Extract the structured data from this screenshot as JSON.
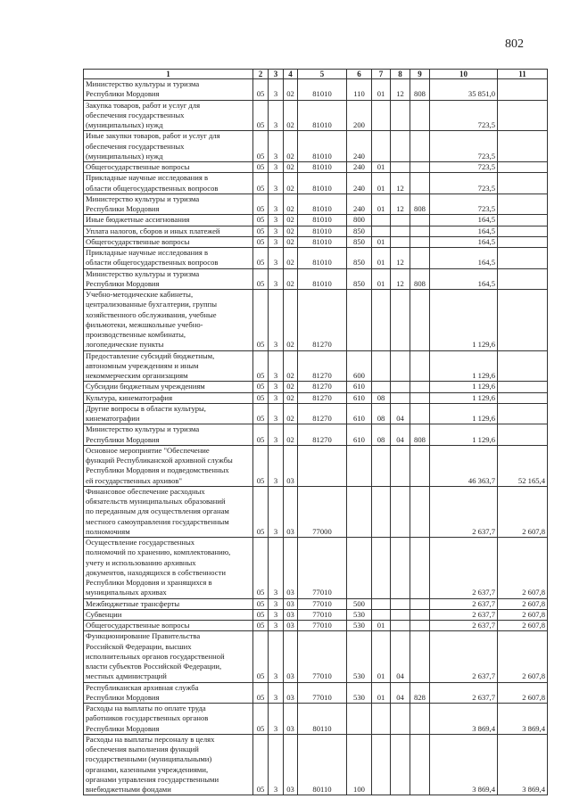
{
  "page_number": "802",
  "headers": [
    "1",
    "2",
    "3",
    "4",
    "5",
    "6",
    "7",
    "8",
    "9",
    "10",
    "11"
  ],
  "rows": [
    [
      "Министерство культуры и туризма\nРеспублики Мордовия",
      "05",
      "3",
      "02",
      "81010",
      "110",
      "01",
      "12",
      "808",
      "35 851,0",
      ""
    ],
    [
      "Закупка товаров, работ и услуг для\nобеспечения государственных\n(муниципальных) нужд",
      "05",
      "3",
      "02",
      "81010",
      "200",
      "",
      "",
      "",
      "723,5",
      ""
    ],
    [
      "Иные закупки товаров, работ и услуг для\nобеспечения государственных\n(муниципальных) нужд",
      "05",
      "3",
      "02",
      "81010",
      "240",
      "",
      "",
      "",
      "723,5",
      ""
    ],
    [
      "Общегосударственные вопросы",
      "05",
      "3",
      "02",
      "81010",
      "240",
      "01",
      "",
      "",
      "723,5",
      ""
    ],
    [
      "Прикладные научные исследования в\nобласти общегосударственных вопросов",
      "05",
      "3",
      "02",
      "81010",
      "240",
      "01",
      "12",
      "",
      "723,5",
      ""
    ],
    [
      "Министерство культуры и туризма\nРеспублики Мордовия",
      "05",
      "3",
      "02",
      "81010",
      "240",
      "01",
      "12",
      "808",
      "723,5",
      ""
    ],
    [
      "Иные бюджетные ассигнования",
      "05",
      "3",
      "02",
      "81010",
      "800",
      "",
      "",
      "",
      "164,5",
      ""
    ],
    [
      "Уплата налогов, сборов и иных платежей",
      "05",
      "3",
      "02",
      "81010",
      "850",
      "",
      "",
      "",
      "164,5",
      ""
    ],
    [
      "Общегосударственные вопросы",
      "05",
      "3",
      "02",
      "81010",
      "850",
      "01",
      "",
      "",
      "164,5",
      ""
    ],
    [
      "Прикладные научные исследования в\nобласти общегосударственных вопросов",
      "05",
      "3",
      "02",
      "81010",
      "850",
      "01",
      "12",
      "",
      "164,5",
      ""
    ],
    [
      "Министерство культуры и туризма\nРеспублики Мордовия",
      "05",
      "3",
      "02",
      "81010",
      "850",
      "01",
      "12",
      "808",
      "164,5",
      ""
    ],
    [
      "Учебно-методические кабинеты,\nцентрализованные бухгалтерии, группы\nхозяйственного обслуживания, учебные\nфильмотеки, межшкольные учебно-\nпроизводственные комбинаты,\nлогопедические пункты",
      "05",
      "3",
      "02",
      "81270",
      "",
      "",
      "",
      "",
      "1 129,6",
      ""
    ],
    [
      "Предоставление субсидий бюджетным,\nавтономным учреждениям и иным\nнекоммерческим организациям",
      "05",
      "3",
      "02",
      "81270",
      "600",
      "",
      "",
      "",
      "1 129,6",
      ""
    ],
    [
      "Субсидии бюджетным учреждениям",
      "05",
      "3",
      "02",
      "81270",
      "610",
      "",
      "",
      "",
      "1 129,6",
      ""
    ],
    [
      "Культура, кинематография",
      "05",
      "3",
      "02",
      "81270",
      "610",
      "08",
      "",
      "",
      "1 129,6",
      ""
    ],
    [
      "Другие вопросы в области культуры,\nкинематографии",
      "05",
      "3",
      "02",
      "81270",
      "610",
      "08",
      "04",
      "",
      "1 129,6",
      ""
    ],
    [
      "Министерство культуры и туризма\nРеспублики Мордовия",
      "05",
      "3",
      "02",
      "81270",
      "610",
      "08",
      "04",
      "808",
      "1 129,6",
      ""
    ],
    [
      "Основное мероприятие \"Обеспечение\nфункций Республиканской архивной службы\nРеспублики Мордовия и подведомственных\nей государственных архивов\"",
      "05",
      "3",
      "03",
      "",
      "",
      "",
      "",
      "",
      "46 363,7",
      "52 165,4"
    ],
    [
      "Финансовое обеспечение расходных\nобязательств муниципальных образований\nпо переданным для осуществления органам\nместного самоуправления государственным\nполномочиям",
      "05",
      "3",
      "03",
      "77000",
      "",
      "",
      "",
      "",
      "2 637,7",
      "2 607,8"
    ],
    [
      "Осуществление государственных\nполномочий по хранению, комплектованию,\nучету и использованию архивных\nдокументов, находящихся в собственности\nРеспублики Мордовия и хранящихся в\nмуниципальных архивах",
      "05",
      "3",
      "03",
      "77010",
      "",
      "",
      "",
      "",
      "2 637,7",
      "2 607,8"
    ],
    [
      "Межбюджетные трансферты",
      "05",
      "3",
      "03",
      "77010",
      "500",
      "",
      "",
      "",
      "2 637,7",
      "2 607,8"
    ],
    [
      "Субвенции",
      "05",
      "3",
      "03",
      "77010",
      "530",
      "",
      "",
      "",
      "2 637,7",
      "2 607,8"
    ],
    [
      "Общегосударственные вопросы",
      "05",
      "3",
      "03",
      "77010",
      "530",
      "01",
      "",
      "",
      "2 637,7",
      "2 607,8"
    ],
    [
      "Функционирование Правительства\nРоссийской Федерации, высших\nисполнительных органов государственной\nвласти субъектов Российской Федерации,\nместных администраций",
      "05",
      "3",
      "03",
      "77010",
      "530",
      "01",
      "04",
      "",
      "2 637,7",
      "2 607,8"
    ],
    [
      "Республиканская архивная служба\nРеспублики Мордовия",
      "05",
      "3",
      "03",
      "77010",
      "530",
      "01",
      "04",
      "828",
      "2 637,7",
      "2 607,8"
    ],
    [
      "Расходы на выплаты по оплате труда\nработников государственных органов\nРеспублики Мордовия",
      "05",
      "3",
      "03",
      "80110",
      "",
      "",
      "",
      "",
      "3 869,4",
      "3 869,4"
    ],
    [
      "Расходы на выплаты персоналу в целях\nобеспечения выполнения функций\nгосударственными (муниципальными)\nорганами, казенными учреждениями,\nорганами управления государственными\nвнебюджетными фондами",
      "05",
      "3",
      "03",
      "80110",
      "100",
      "",
      "",
      "",
      "3 869,4",
      "3 869,4"
    ]
  ]
}
